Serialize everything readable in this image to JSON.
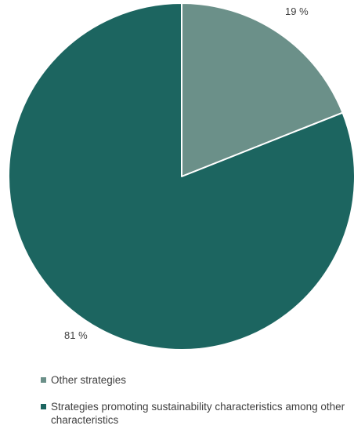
{
  "chart_data": {
    "type": "pie",
    "slices": [
      {
        "label": "Other strategies",
        "value": 19,
        "display": "19 %",
        "color": "#6b9089"
      },
      {
        "label": "Strategies promoting sustainability characteristics among other characteristics",
        "value": 81,
        "display": "81 %",
        "color": "#1c6560"
      }
    ],
    "title": "",
    "legend_position": "bottom-left"
  }
}
